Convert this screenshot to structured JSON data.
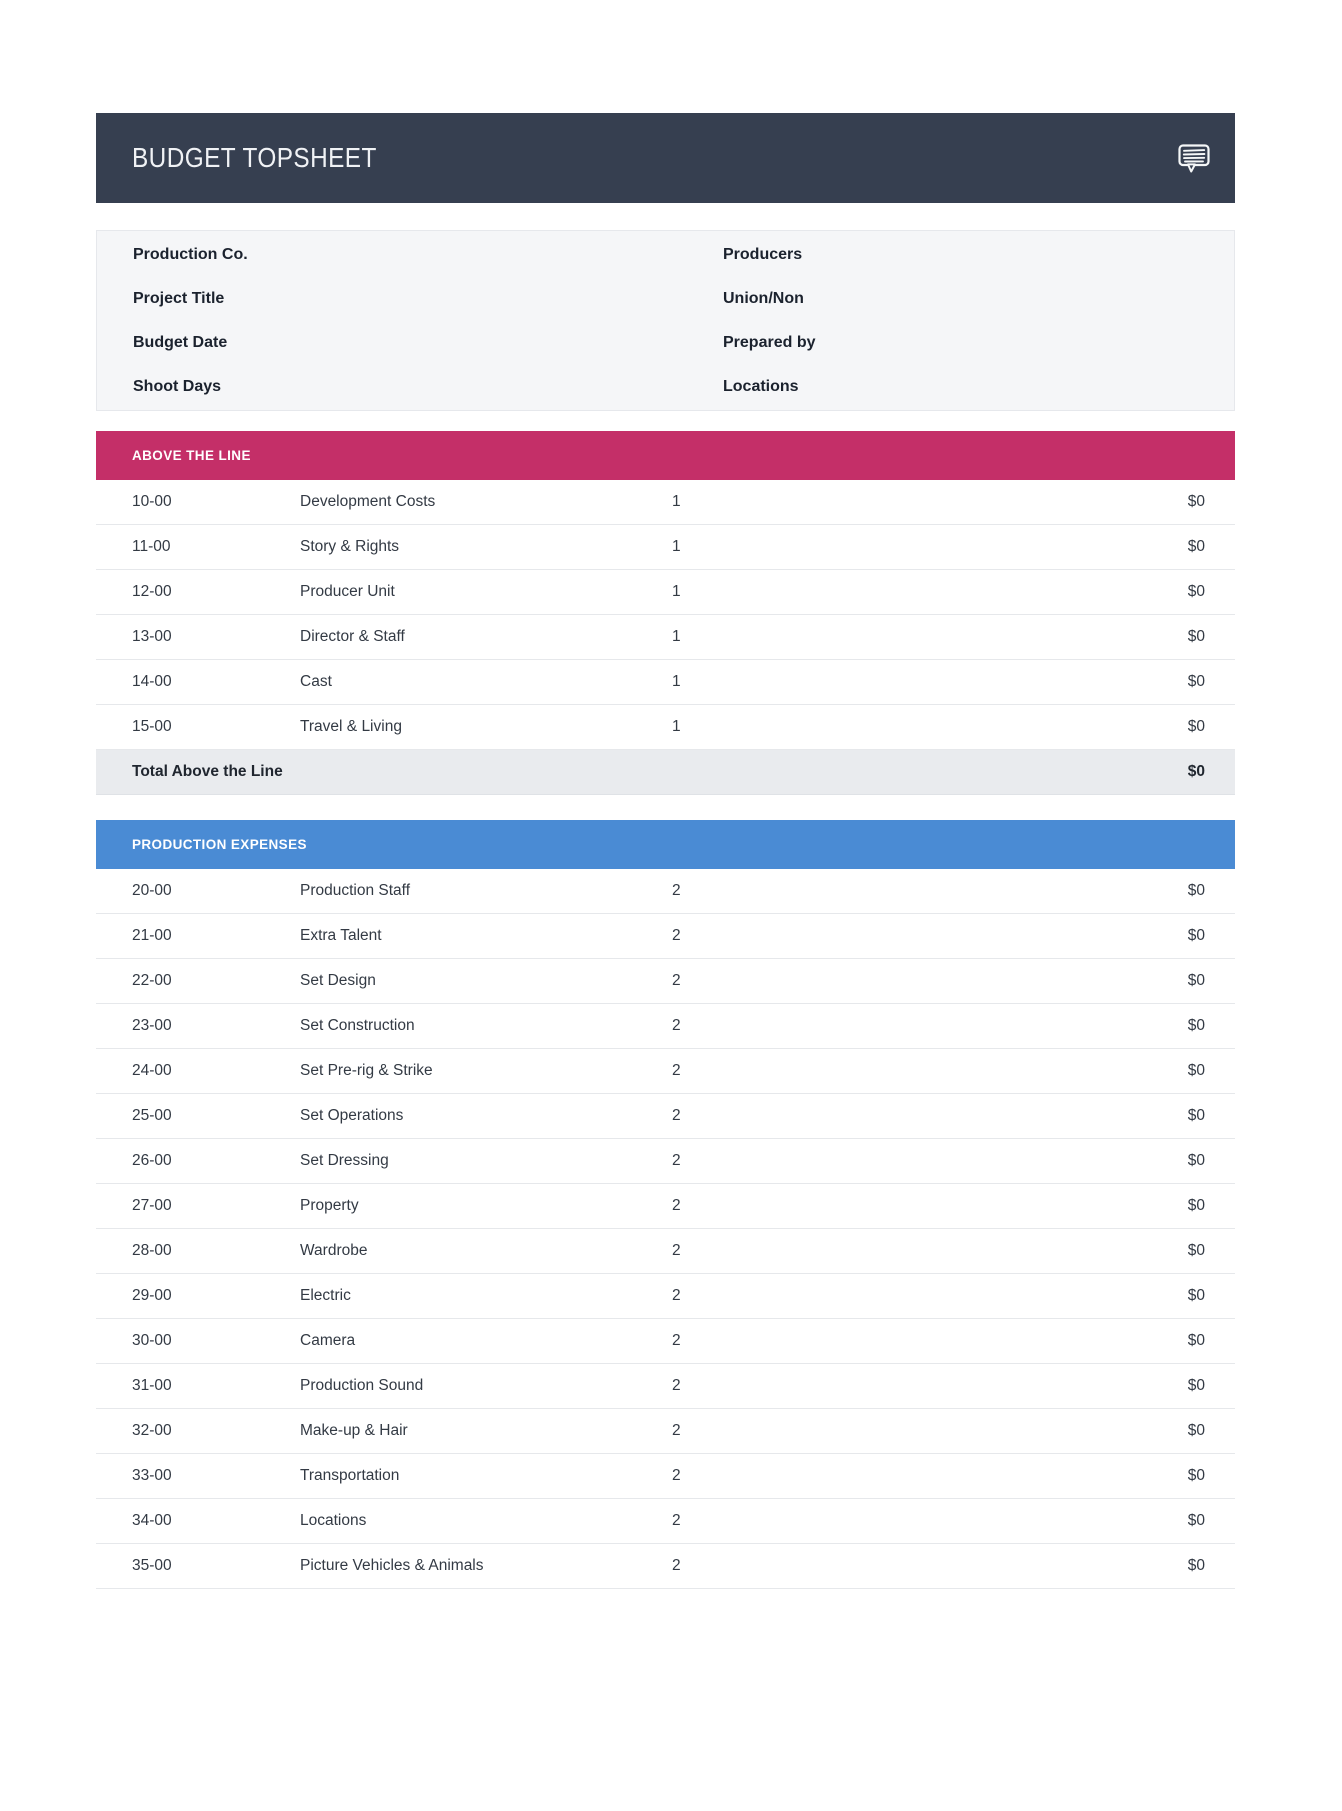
{
  "header": {
    "title": "BUDGET TOPSHEET",
    "bg_color": "#363F50",
    "icon": "comment-bubble-icon"
  },
  "info_panel": {
    "left_labels": [
      "Production Co.",
      "Project Title",
      "Budget Date",
      "Shoot Days"
    ],
    "right_labels": [
      "Producers",
      "Union/Non",
      "Prepared by",
      "Locations"
    ]
  },
  "sections": [
    {
      "title": "ABOVE THE LINE",
      "color": "#C42F68",
      "rows": [
        {
          "account": "10-00",
          "description": "Development Costs",
          "units": "1",
          "amount": "$0"
        },
        {
          "account": "11-00",
          "description": "Story & Rights",
          "units": "1",
          "amount": "$0"
        },
        {
          "account": "12-00",
          "description": "Producer Unit",
          "units": "1",
          "amount": "$0"
        },
        {
          "account": "13-00",
          "description": "Director & Staff",
          "units": "1",
          "amount": "$0"
        },
        {
          "account": "14-00",
          "description": "Cast",
          "units": "1",
          "amount": "$0"
        },
        {
          "account": "15-00",
          "description": "Travel & Living",
          "units": "1",
          "amount": "$0"
        }
      ],
      "total": {
        "label": "Total Above the Line",
        "amount": "$0"
      }
    },
    {
      "title": "PRODUCTION EXPENSES",
      "color": "#4A8BD4",
      "rows": [
        {
          "account": "20-00",
          "description": "Production Staff",
          "units": "2",
          "amount": "$0"
        },
        {
          "account": "21-00",
          "description": "Extra Talent",
          "units": "2",
          "amount": "$0"
        },
        {
          "account": "22-00",
          "description": "Set Design",
          "units": "2",
          "amount": "$0"
        },
        {
          "account": "23-00",
          "description": "Set Construction",
          "units": "2",
          "amount": "$0"
        },
        {
          "account": "24-00",
          "description": "Set Pre-rig & Strike",
          "units": "2",
          "amount": "$0"
        },
        {
          "account": "25-00",
          "description": "Set Operations",
          "units": "2",
          "amount": "$0"
        },
        {
          "account": "26-00",
          "description": "Set Dressing",
          "units": "2",
          "amount": "$0"
        },
        {
          "account": "27-00",
          "description": "Property",
          "units": "2",
          "amount": "$0"
        },
        {
          "account": "28-00",
          "description": "Wardrobe",
          "units": "2",
          "amount": "$0"
        },
        {
          "account": "29-00",
          "description": "Electric",
          "units": "2",
          "amount": "$0"
        },
        {
          "account": "30-00",
          "description": "Camera",
          "units": "2",
          "amount": "$0"
        },
        {
          "account": "31-00",
          "description": "Production Sound",
          "units": "2",
          "amount": "$0"
        },
        {
          "account": "32-00",
          "description": "Make-up & Hair",
          "units": "2",
          "amount": "$0"
        },
        {
          "account": "33-00",
          "description": "Transportation",
          "units": "2",
          "amount": "$0"
        },
        {
          "account": "34-00",
          "description": "Locations",
          "units": "2",
          "amount": "$0"
        },
        {
          "account": "35-00",
          "description": "Picture Vehicles & Animals",
          "units": "2",
          "amount": "$0"
        }
      ],
      "total": null
    }
  ]
}
